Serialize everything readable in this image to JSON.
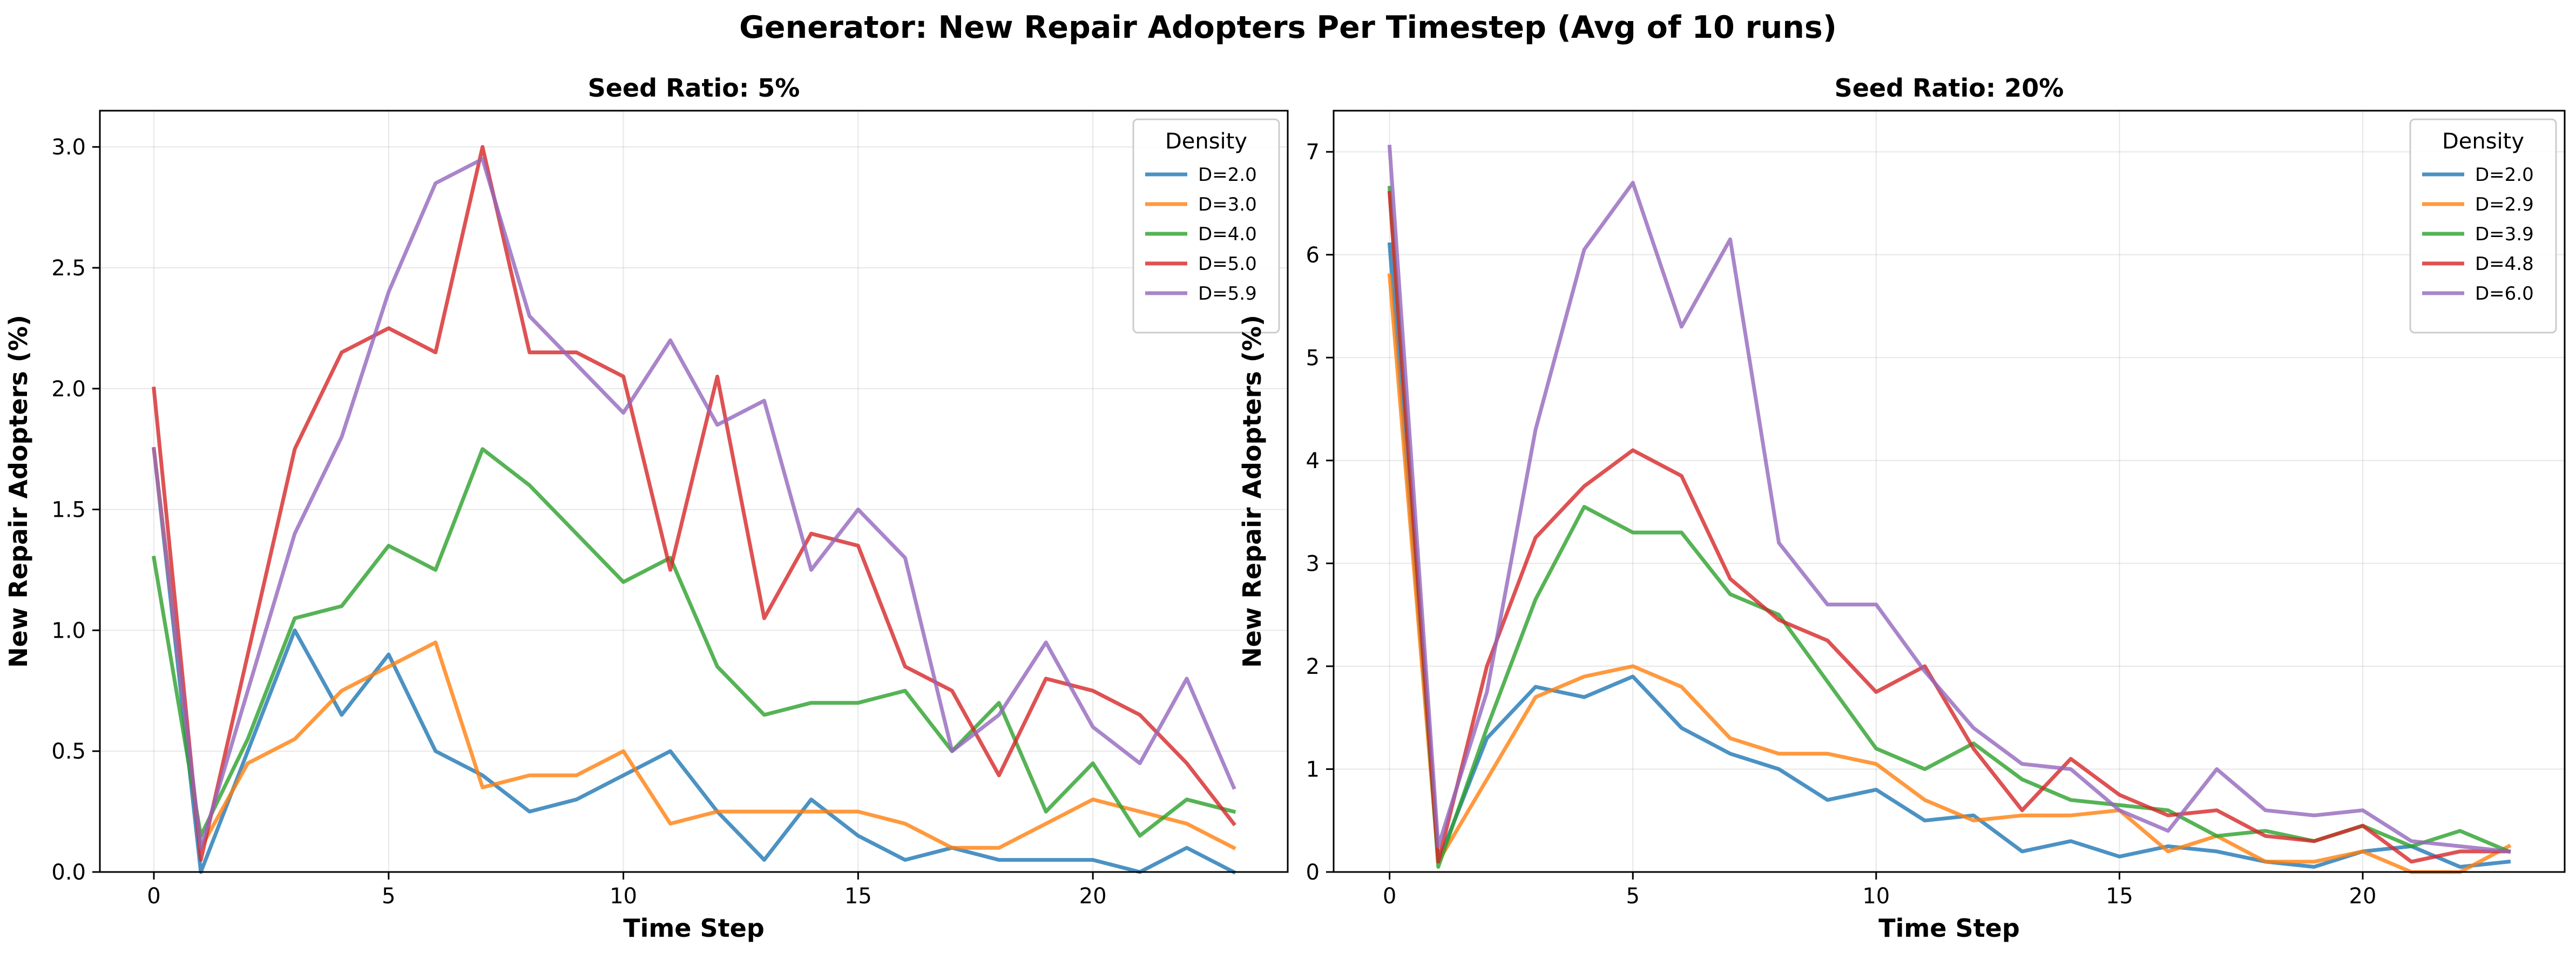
{
  "figure": {
    "suptitle": "Generator: New Repair Adopters Per Timestep (Avg of 10 runs)"
  },
  "chart_data": [
    {
      "type": "line",
      "title": "Seed Ratio: 5%",
      "xlabel": "Time Step",
      "ylabel": "New Repair Adopters (%)",
      "xlim": [
        -1.15,
        24.15
      ],
      "ylim": [
        0,
        3.15
      ],
      "xticks": [
        0,
        5,
        10,
        15,
        20
      ],
      "yticks": [
        0.0,
        0.5,
        1.0,
        1.5,
        2.0,
        2.5,
        3.0
      ],
      "ytick_labels": [
        "0.0",
        "0.5",
        "1.0",
        "1.5",
        "2.0",
        "2.5",
        "3.0"
      ],
      "grid": true,
      "legend_title": "Density",
      "legend_position": "top-right",
      "x": [
        0,
        1,
        2,
        3,
        4,
        5,
        6,
        7,
        8,
        9,
        10,
        11,
        12,
        13,
        14,
        15,
        16,
        17,
        18,
        19,
        20,
        21,
        22,
        23
      ],
      "series": [
        {
          "name": "D=2.0",
          "color": "#1f77b4",
          "values": [
            1.75,
            0.0,
            0.5,
            1.0,
            0.65,
            0.9,
            0.5,
            0.4,
            0.25,
            0.3,
            0.4,
            0.5,
            0.25,
            0.05,
            0.3,
            0.15,
            0.05,
            0.1,
            0.05,
            0.05,
            0.05,
            0.0,
            0.1,
            0.0
          ]
        },
        {
          "name": "D=3.0",
          "color": "#ff7f0e",
          "values": [
            1.75,
            0.1,
            0.45,
            0.55,
            0.75,
            0.85,
            0.95,
            0.35,
            0.4,
            0.4,
            0.5,
            0.2,
            0.25,
            0.25,
            0.25,
            0.25,
            0.2,
            0.1,
            0.1,
            0.2,
            0.3,
            0.25,
            0.2,
            0.1
          ]
        },
        {
          "name": "D=4.0",
          "color": "#2ca02c",
          "values": [
            1.3,
            0.15,
            0.55,
            1.05,
            1.1,
            1.35,
            1.25,
            1.75,
            1.6,
            1.4,
            1.2,
            1.3,
            0.85,
            0.65,
            0.7,
            0.7,
            0.75,
            0.5,
            0.7,
            0.25,
            0.45,
            0.15,
            0.3,
            0.25
          ]
        },
        {
          "name": "D=5.0",
          "color": "#d62728",
          "values": [
            2.0,
            0.05,
            0.9,
            1.75,
            2.15,
            2.25,
            2.15,
            3.0,
            2.15,
            2.15,
            2.05,
            1.25,
            2.05,
            1.05,
            1.4,
            1.35,
            0.85,
            0.75,
            0.4,
            0.8,
            0.75,
            0.65,
            0.45,
            0.2
          ]
        },
        {
          "name": "D=5.9",
          "color": "#9467bd",
          "values": [
            1.75,
            0.1,
            0.75,
            1.4,
            1.8,
            2.4,
            2.85,
            2.95,
            2.3,
            2.1,
            1.9,
            2.2,
            1.85,
            1.95,
            1.25,
            1.5,
            1.3,
            0.5,
            0.65,
            0.95,
            0.6,
            0.45,
            0.8,
            0.35
          ]
        }
      ]
    },
    {
      "type": "line",
      "title": "Seed Ratio: 20%",
      "xlabel": "Time Step",
      "ylabel": "New Repair Adopters (%)",
      "xlim": [
        -1.15,
        24.15
      ],
      "ylim": [
        0,
        7.4
      ],
      "xticks": [
        0,
        5,
        10,
        15,
        20
      ],
      "yticks": [
        0,
        1,
        2,
        3,
        4,
        5,
        6,
        7
      ],
      "ytick_labels": [
        "0",
        "1",
        "2",
        "3",
        "4",
        "5",
        "6",
        "7"
      ],
      "grid": true,
      "legend_title": "Density",
      "legend_position": "top-right",
      "x": [
        0,
        1,
        2,
        3,
        4,
        5,
        6,
        7,
        8,
        9,
        10,
        11,
        12,
        13,
        14,
        15,
        16,
        17,
        18,
        19,
        20,
        21,
        22,
        23
      ],
      "series": [
        {
          "name": "D=2.0",
          "color": "#1f77b4",
          "values": [
            6.1,
            0.1,
            1.3,
            1.8,
            1.7,
            1.9,
            1.4,
            1.15,
            1.0,
            0.7,
            0.8,
            0.5,
            0.55,
            0.2,
            0.3,
            0.15,
            0.25,
            0.2,
            0.1,
            0.05,
            0.2,
            0.25,
            0.05,
            0.1
          ]
        },
        {
          "name": "D=2.9",
          "color": "#ff7f0e",
          "values": [
            5.8,
            0.1,
            0.9,
            1.7,
            1.9,
            2.0,
            1.8,
            1.3,
            1.15,
            1.15,
            1.05,
            0.7,
            0.5,
            0.55,
            0.55,
            0.6,
            0.2,
            0.35,
            0.1,
            0.1,
            0.2,
            0.0,
            0.0,
            0.25
          ]
        },
        {
          "name": "D=3.9",
          "color": "#2ca02c",
          "values": [
            6.65,
            0.05,
            1.4,
            2.65,
            3.55,
            3.3,
            3.3,
            2.7,
            2.5,
            1.85,
            1.2,
            1.0,
            1.25,
            0.9,
            0.7,
            0.65,
            0.6,
            0.35,
            0.4,
            0.3,
            0.45,
            0.25,
            0.4,
            0.2
          ]
        },
        {
          "name": "D=4.8",
          "color": "#d62728",
          "values": [
            6.6,
            0.1,
            2.0,
            3.25,
            3.75,
            4.1,
            3.85,
            2.85,
            2.45,
            2.25,
            1.75,
            2.0,
            1.2,
            0.6,
            1.1,
            0.75,
            0.55,
            0.6,
            0.35,
            0.3,
            0.45,
            0.1,
            0.2,
            0.2
          ]
        },
        {
          "name": "D=6.0",
          "color": "#9467bd",
          "values": [
            7.05,
            0.25,
            1.75,
            4.3,
            6.05,
            6.7,
            5.3,
            6.15,
            3.2,
            2.6,
            2.6,
            1.95,
            1.4,
            1.05,
            1.0,
            0.6,
            0.4,
            1.0,
            0.6,
            0.55,
            0.6,
            0.3,
            0.25,
            0.2
          ]
        }
      ]
    }
  ]
}
